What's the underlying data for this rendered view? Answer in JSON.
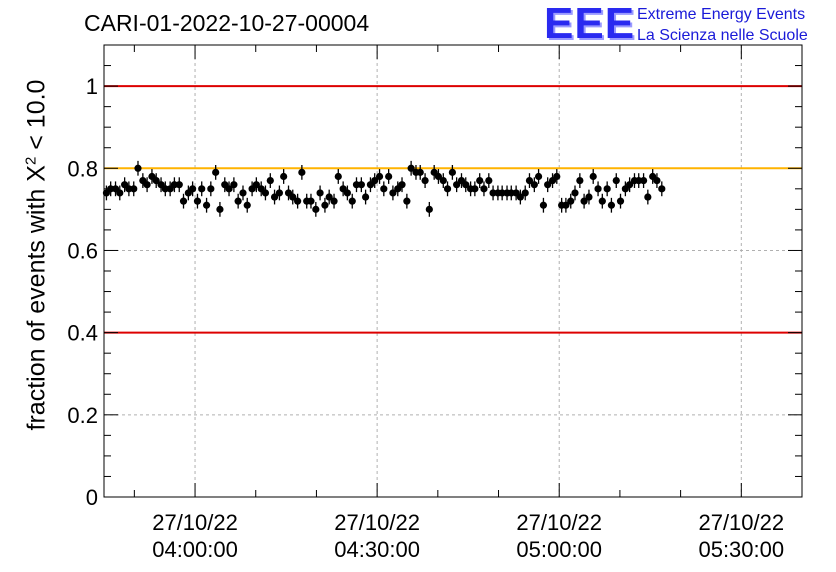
{
  "header": {
    "title": "CARI-01-2022-10-27-00004",
    "logo_mark": "EEE",
    "logo_line1": "Extreme Energy Events",
    "logo_line2": "La Scienza nelle Scuole"
  },
  "colors": {
    "threshold_red": "#dd0000",
    "threshold_orange": "#ffb300",
    "points": "#000000",
    "grid": "#b0b0b0"
  },
  "chart_data": {
    "type": "scatter",
    "title": "CARI-01-2022-10-27-00004",
    "ylabel_prefix": "fraction of events with ",
    "ylabel_symbol": "X",
    "ylabel_exp": "2",
    "ylabel_suffix": " < 10.0",
    "xlabel": "",
    "ylim": [
      0,
      1.1
    ],
    "xlim_minutes": [
      -15,
      100
    ],
    "y_ticks": [
      "0",
      "0.2",
      "0.4",
      "0.6",
      "0.8",
      "1"
    ],
    "y_tick_values": [
      0,
      0.2,
      0.4,
      0.6,
      0.8,
      1.0
    ],
    "x_ticks": [
      {
        "date": "27/10/22",
        "time": "04:00:00",
        "minutes": 0
      },
      {
        "date": "27/10/22",
        "time": "04:30:00",
        "minutes": 30
      },
      {
        "date": "27/10/22",
        "time": "05:00:00",
        "minutes": 60
      },
      {
        "date": "27/10/22",
        "time": "05:30:00",
        "minutes": 90
      }
    ],
    "hlines": [
      {
        "y": 1.0,
        "color": "#dd0000"
      },
      {
        "y": 0.8,
        "color": "#ffb300"
      },
      {
        "y": 0.4,
        "color": "#dd0000"
      }
    ],
    "grid": true,
    "series": [
      {
        "error": 0.018,
        "points": [
          [
            -15.0,
            0.74
          ],
          [
            -14.3,
            0.75
          ],
          [
            -13.5,
            0.75
          ],
          [
            -12.8,
            0.74
          ],
          [
            -12.0,
            0.76
          ],
          [
            -11.3,
            0.75
          ],
          [
            -10.5,
            0.75
          ],
          [
            -9.8,
            0.8
          ],
          [
            -9.0,
            0.77
          ],
          [
            -8.3,
            0.76
          ],
          [
            -7.5,
            0.78
          ],
          [
            -6.8,
            0.77
          ],
          [
            -6.0,
            0.76
          ],
          [
            -5.3,
            0.75
          ],
          [
            -4.5,
            0.75
          ],
          [
            -3.8,
            0.76
          ],
          [
            -3.0,
            0.76
          ],
          [
            -2.3,
            0.72
          ],
          [
            -1.5,
            0.74
          ],
          [
            -0.8,
            0.75
          ],
          [
            0.0,
            0.72
          ],
          [
            0.7,
            0.75
          ],
          [
            1.5,
            0.71
          ],
          [
            2.2,
            0.75
          ],
          [
            3.0,
            0.79
          ],
          [
            3.7,
            0.7
          ],
          [
            4.5,
            0.76
          ],
          [
            5.2,
            0.75
          ],
          [
            6.0,
            0.76
          ],
          [
            6.7,
            0.72
          ],
          [
            7.5,
            0.74
          ],
          [
            8.2,
            0.71
          ],
          [
            9.0,
            0.75
          ],
          [
            9.7,
            0.76
          ],
          [
            10.5,
            0.75
          ],
          [
            11.2,
            0.74
          ],
          [
            12.0,
            0.77
          ],
          [
            12.7,
            0.73
          ],
          [
            13.5,
            0.74
          ],
          [
            14.2,
            0.78
          ],
          [
            15.0,
            0.74
          ],
          [
            15.7,
            0.73
          ],
          [
            16.5,
            0.72
          ],
          [
            17.2,
            0.79
          ],
          [
            18.0,
            0.72
          ],
          [
            18.7,
            0.72
          ],
          [
            19.5,
            0.7
          ],
          [
            20.2,
            0.74
          ],
          [
            21.0,
            0.71
          ],
          [
            21.7,
            0.73
          ],
          [
            22.5,
            0.72
          ],
          [
            23.2,
            0.78
          ],
          [
            24.0,
            0.75
          ],
          [
            24.7,
            0.74
          ],
          [
            25.5,
            0.72
          ],
          [
            26.2,
            0.76
          ],
          [
            27.0,
            0.76
          ],
          [
            27.7,
            0.73
          ],
          [
            28.5,
            0.76
          ],
          [
            29.2,
            0.77
          ],
          [
            30.0,
            0.78
          ],
          [
            30.7,
            0.75
          ],
          [
            31.5,
            0.78
          ],
          [
            32.2,
            0.74
          ],
          [
            33.0,
            0.75
          ],
          [
            33.7,
            0.76
          ],
          [
            34.5,
            0.72
          ],
          [
            35.2,
            0.8
          ],
          [
            36.0,
            0.79
          ],
          [
            36.7,
            0.79
          ],
          [
            37.5,
            0.77
          ],
          [
            38.2,
            0.7
          ],
          [
            39.0,
            0.79
          ],
          [
            39.7,
            0.78
          ],
          [
            40.5,
            0.77
          ],
          [
            41.2,
            0.75
          ],
          [
            42.0,
            0.79
          ],
          [
            42.7,
            0.76
          ],
          [
            43.5,
            0.77
          ],
          [
            44.2,
            0.76
          ],
          [
            45.0,
            0.75
          ],
          [
            45.7,
            0.75
          ],
          [
            46.5,
            0.77
          ],
          [
            47.2,
            0.75
          ],
          [
            48.0,
            0.77
          ],
          [
            48.7,
            0.74
          ],
          [
            49.5,
            0.74
          ],
          [
            50.2,
            0.74
          ],
          [
            51.0,
            0.74
          ],
          [
            51.7,
            0.74
          ],
          [
            52.5,
            0.74
          ],
          [
            53.2,
            0.73
          ],
          [
            54.0,
            0.74
          ],
          [
            54.7,
            0.77
          ],
          [
            55.5,
            0.76
          ],
          [
            56.2,
            0.78
          ],
          [
            57.0,
            0.71
          ],
          [
            57.7,
            0.76
          ],
          [
            58.5,
            0.77
          ],
          [
            59.2,
            0.78
          ],
          [
            60.0,
            0.71
          ],
          [
            60.7,
            0.71
          ],
          [
            61.5,
            0.72
          ],
          [
            62.2,
            0.74
          ],
          [
            63.0,
            0.77
          ],
          [
            63.7,
            0.72
          ],
          [
            64.5,
            0.73
          ],
          [
            65.2,
            0.78
          ],
          [
            66.0,
            0.75
          ],
          [
            66.7,
            0.72
          ],
          [
            67.5,
            0.75
          ],
          [
            68.2,
            0.71
          ],
          [
            69.0,
            0.77
          ],
          [
            69.7,
            0.72
          ],
          [
            70.5,
            0.75
          ],
          [
            71.2,
            0.76
          ],
          [
            72.0,
            0.77
          ],
          [
            72.7,
            0.77
          ],
          [
            73.5,
            0.77
          ],
          [
            74.2,
            0.73
          ],
          [
            75.0,
            0.78
          ],
          [
            75.7,
            0.77
          ],
          [
            76.5,
            0.75
          ]
        ]
      }
    ]
  }
}
